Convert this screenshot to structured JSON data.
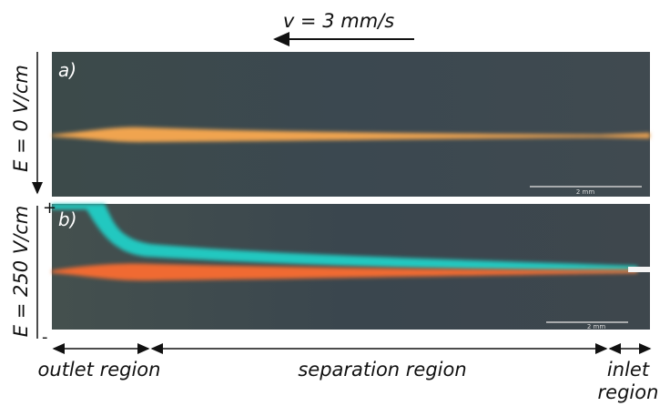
{
  "figure": {
    "velocity_label": "v = 3 mm/s",
    "panels": [
      {
        "label": "a)",
        "field_label": "E = 0 V/cm",
        "scale_bar": "2 mm"
      },
      {
        "label": "b)",
        "field_label": "E = 250 V/cm",
        "scale_bar": "2 mm",
        "plus": "+",
        "minus": "-"
      }
    ],
    "regions": [
      "outlet region",
      "separation region",
      "inlet region"
    ]
  }
}
